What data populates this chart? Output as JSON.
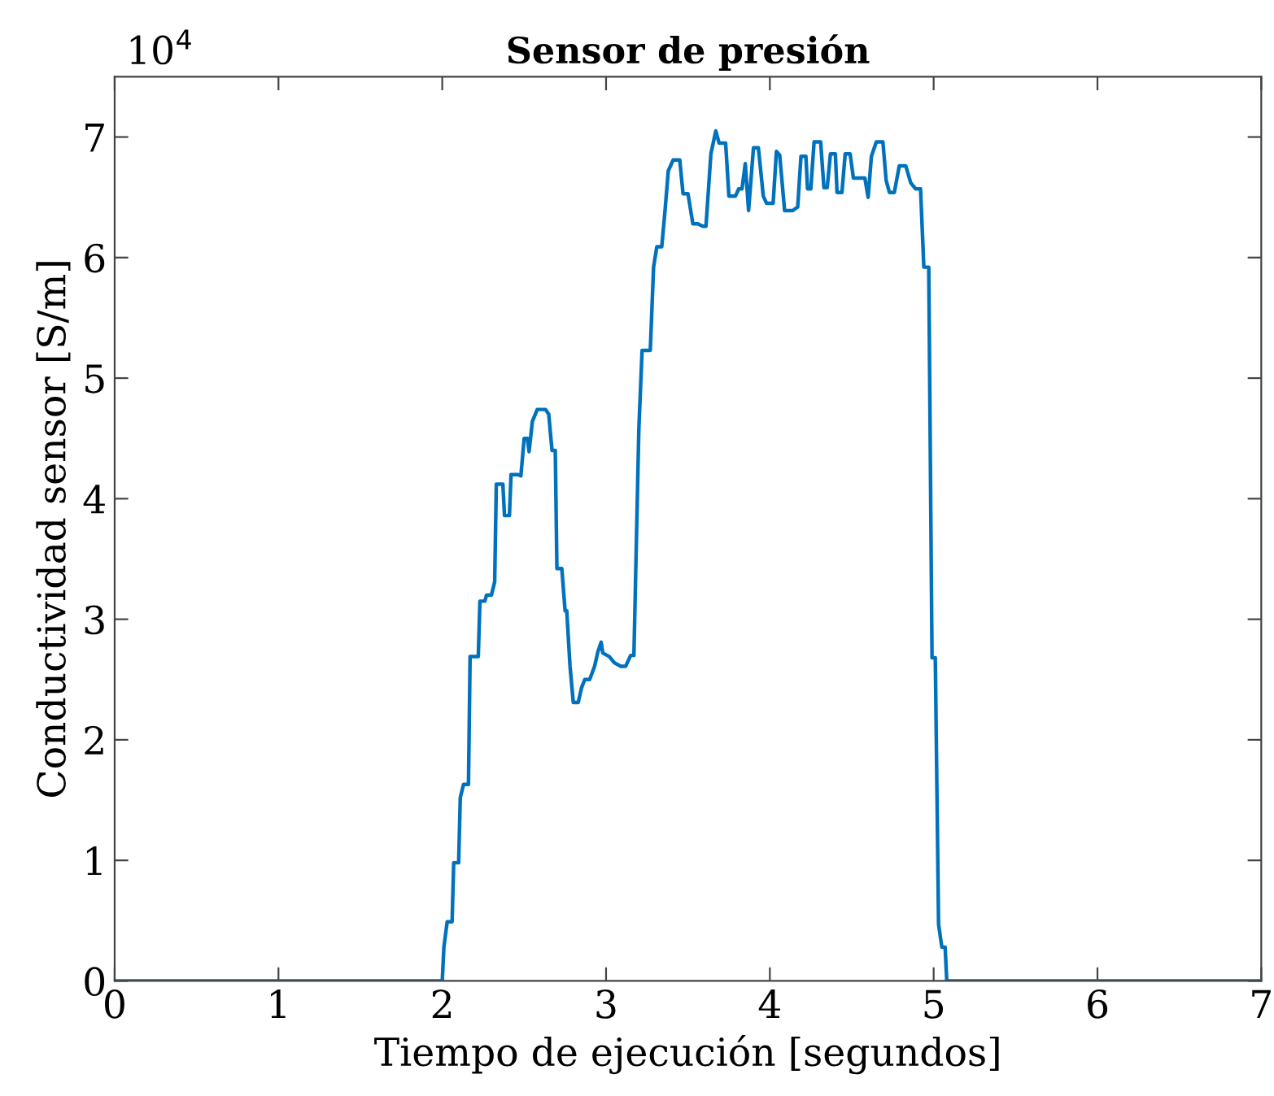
{
  "chart_data": {
    "type": "line",
    "title": "Sensor de presión",
    "xlabel": "Tiempo de ejecución [segundos]",
    "ylabel": "Conductividad sensor [S/m]",
    "annotations": [
      "10$^{4}$"
    ],
    "xlim": [
      0,
      7
    ],
    "xticks": [
      0,
      1,
      2,
      3,
      4,
      5,
      6,
      7
    ],
    "ylim": [
      0,
      7.5
    ],
    "yticks": [
      0,
      1,
      2,
      3,
      4,
      5,
      6,
      7
    ],
    "grid": false,
    "line_style": "solid",
    "marker": "none",
    "series": [
      {
        "color": "#0072bd",
        "x": [
          0,
          2.0,
          2.01,
          2.03,
          2.06,
          2.07,
          2.1,
          2.11,
          2.13,
          2.16,
          2.17,
          2.22,
          2.23,
          2.26,
          2.27,
          2.3,
          2.32,
          2.33,
          2.37,
          2.38,
          2.41,
          2.42,
          2.46,
          2.48,
          2.5,
          2.52,
          2.53,
          2.55,
          2.58,
          2.63,
          2.65,
          2.67,
          2.69,
          2.7,
          2.73,
          2.75,
          2.76,
          2.78,
          2.8,
          2.83,
          2.85,
          2.87,
          2.9,
          2.93,
          2.95,
          2.97,
          2.98,
          3.02,
          3.05,
          3.09,
          3.12,
          3.15,
          3.17,
          3.2,
          3.22,
          3.27,
          3.29,
          3.31,
          3.34,
          3.36,
          3.38,
          3.41,
          3.45,
          3.47,
          3.5,
          3.53,
          3.56,
          3.59,
          3.61,
          3.64,
          3.67,
          3.69,
          3.73,
          3.75,
          3.79,
          3.81,
          3.83,
          3.85,
          3.87,
          3.9,
          3.93,
          3.96,
          3.98,
          4.02,
          4.04,
          4.06,
          4.09,
          4.14,
          4.17,
          4.19,
          4.22,
          4.23,
          4.25,
          4.27,
          4.31,
          4.33,
          4.35,
          4.37,
          4.4,
          4.41,
          4.44,
          4.46,
          4.49,
          4.51,
          4.58,
          4.6,
          4.62,
          4.65,
          4.69,
          4.71,
          4.73,
          4.76,
          4.79,
          4.83,
          4.86,
          4.89,
          4.92,
          4.94,
          4.97,
          4.99,
          5.01,
          5.03,
          5.05,
          5.07,
          5.08,
          7
        ],
        "values": [
          0,
          0,
          0.28,
          0.49,
          0.49,
          0.98,
          0.98,
          1.52,
          1.63,
          1.63,
          2.69,
          2.69,
          3.15,
          3.15,
          3.2,
          3.2,
          3.31,
          4.12,
          4.12,
          3.86,
          3.86,
          4.2,
          4.2,
          4.19,
          4.5,
          4.5,
          4.39,
          4.64,
          4.74,
          4.74,
          4.7,
          4.4,
          4.4,
          3.42,
          3.42,
          3.07,
          3.07,
          2.61,
          2.31,
          2.31,
          2.43,
          2.5,
          2.5,
          2.61,
          2.73,
          2.81,
          2.72,
          2.69,
          2.64,
          2.61,
          2.61,
          2.7,
          2.7,
          4.57,
          5.23,
          5.23,
          5.92,
          6.09,
          6.09,
          6.39,
          6.72,
          6.81,
          6.81,
          6.53,
          6.53,
          6.28,
          6.28,
          6.26,
          6.26,
          6.86,
          7.05,
          6.95,
          6.95,
          6.51,
          6.51,
          6.57,
          6.57,
          6.78,
          6.39,
          6.91,
          6.91,
          6.51,
          6.45,
          6.45,
          6.88,
          6.85,
          6.39,
          6.39,
          6.42,
          6.84,
          6.84,
          6.57,
          6.57,
          6.96,
          6.96,
          6.58,
          6.58,
          6.86,
          6.86,
          6.54,
          6.54,
          6.86,
          6.86,
          6.66,
          6.66,
          6.5,
          6.84,
          6.96,
          6.96,
          6.64,
          6.54,
          6.54,
          6.76,
          6.76,
          6.62,
          6.57,
          6.57,
          5.92,
          5.92,
          2.68,
          2.68,
          0.47,
          0.28,
          0.28,
          0,
          0
        ]
      }
    ]
  }
}
